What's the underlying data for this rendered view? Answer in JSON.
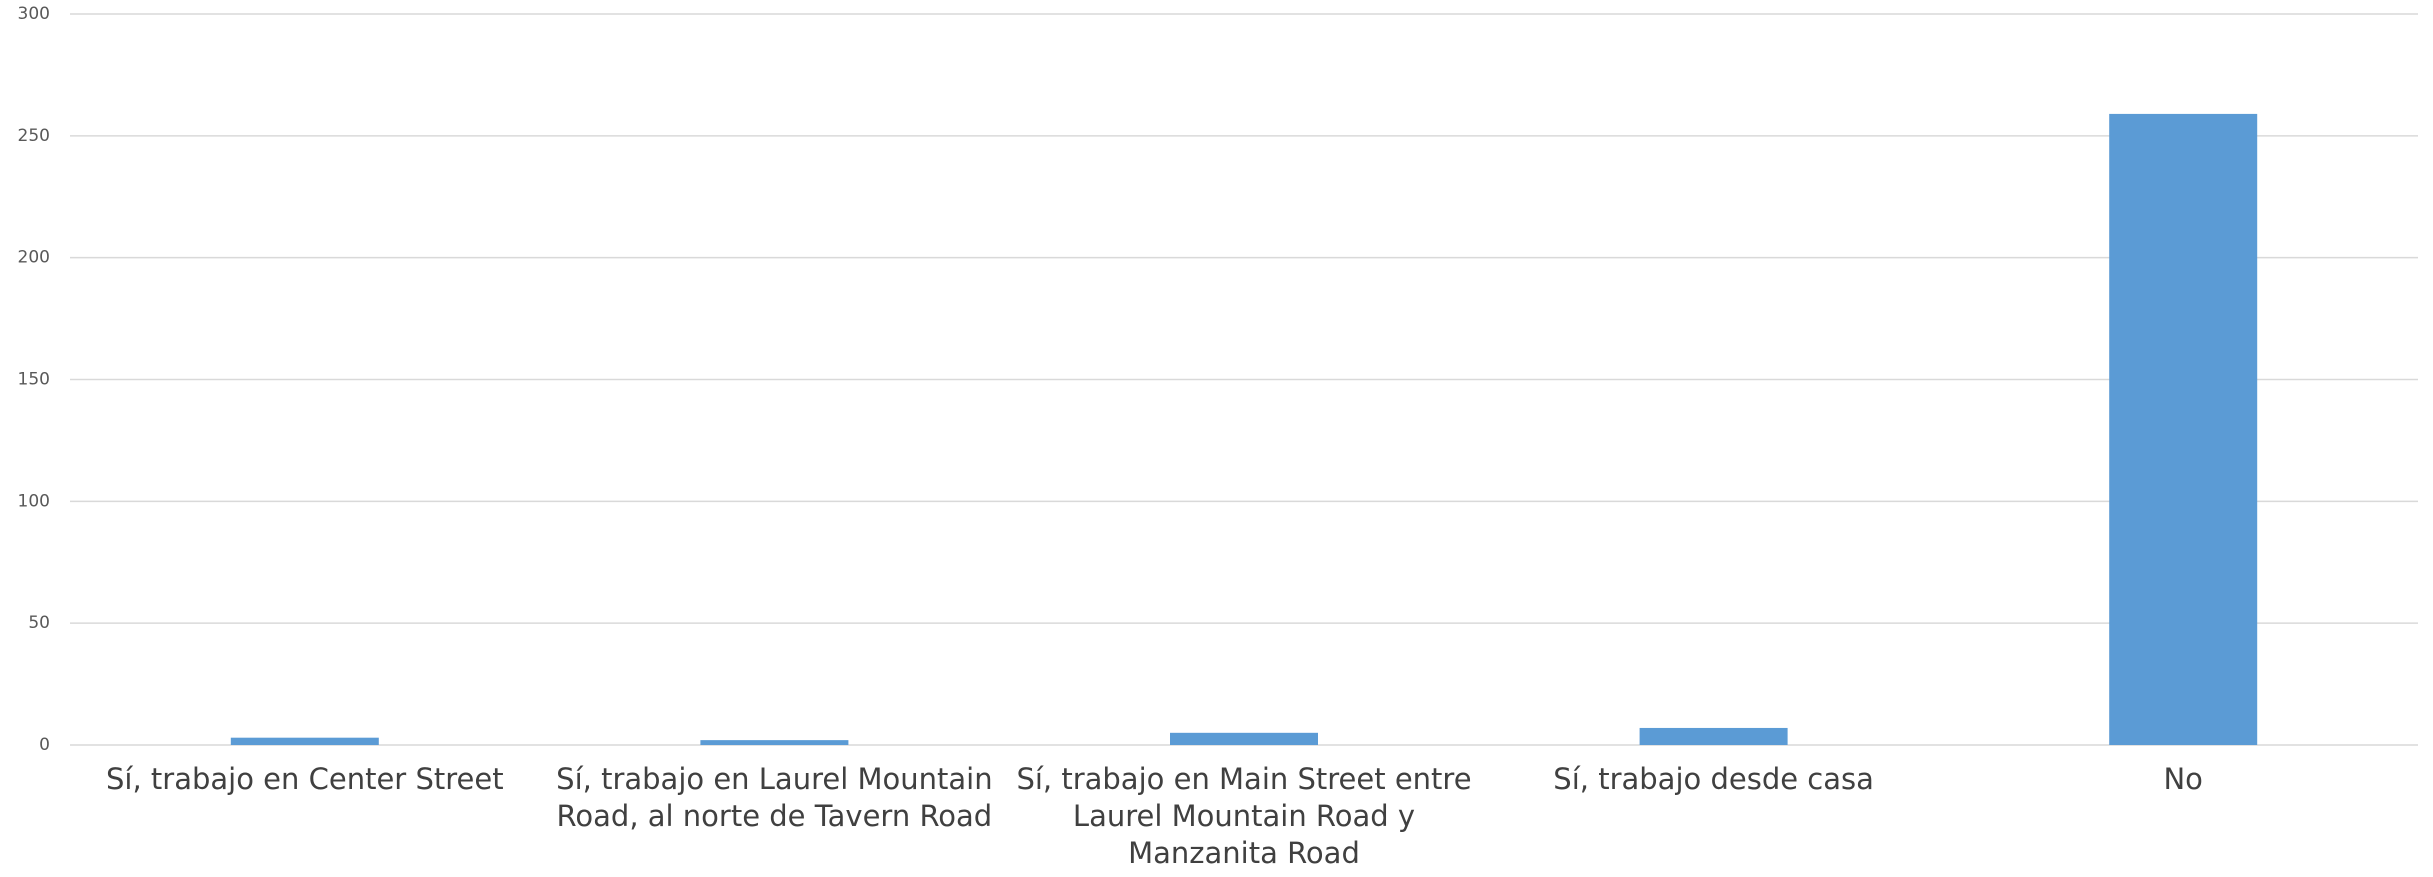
{
  "chart_data": {
    "type": "bar",
    "categories": [
      "Sí, trabajo en Center Street",
      "Sí, trabajo en Laurel Mountain Road, al norte de Tavern Road",
      "Sí, trabajo en Main Street entre Laurel Mountain Road y Manzanita Road",
      "Sí, trabajo desde casa",
      "No"
    ],
    "values": [
      3,
      2,
      5,
      7,
      259
    ],
    "color": "#5b9bd5",
    "ylim": [
      0,
      300
    ],
    "yticks": [
      0,
      50,
      100,
      150,
      200,
      250,
      300
    ],
    "grid": true
  }
}
